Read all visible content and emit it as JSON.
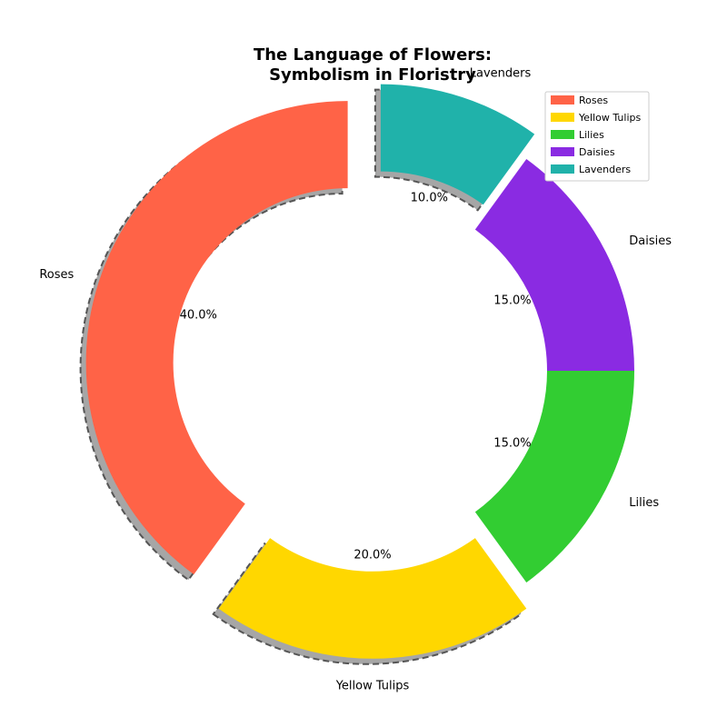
{
  "chart_data": {
    "type": "pie",
    "title_lines": [
      "The Language of Flowers:",
      "Symbolism in Floristry"
    ],
    "categories": [
      "Roses",
      "Yellow Tulips",
      "Lilies",
      "Daisies",
      "Lavenders"
    ],
    "values": [
      40,
      20,
      15,
      15,
      10
    ],
    "percent_labels": [
      "40.0%",
      "20.0%",
      "15.0%",
      "15.0%",
      "10.0%"
    ],
    "colors": [
      "#FF6347",
      "#FFD700",
      "#32CD32",
      "#8A2BE2",
      "#20B2AA"
    ],
    "exploded": [
      true,
      true,
      false,
      false,
      true
    ],
    "donut": true,
    "shadow": true,
    "start_angle_deg": 90,
    "direction": "counterclockwise",
    "legend_position": "top-right"
  }
}
